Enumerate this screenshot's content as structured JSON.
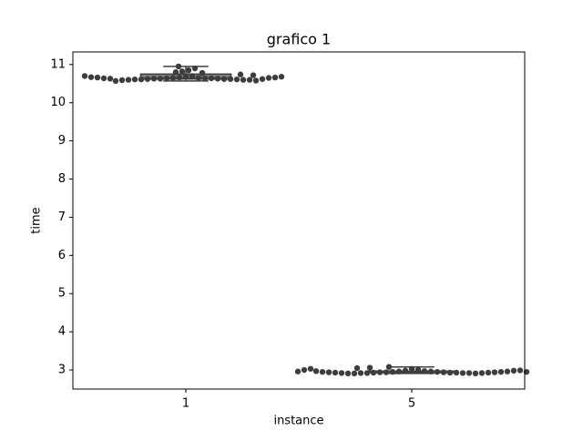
{
  "chart_data": {
    "type": "box",
    "title": "grafico 1",
    "x_label": "instance",
    "y_label": "time",
    "categories": [
      "1",
      "5"
    ],
    "box_color": "#808080",
    "line_color": "#3f3f3f",
    "point_color": "#3d3d3d",
    "boxes": [
      {
        "whislo": 10.57,
        "q1": 10.62,
        "med": 10.64,
        "q3": 10.75,
        "whishi": 10.95
      },
      {
        "whislo": 2.91,
        "q1": 2.93,
        "med": 2.94,
        "q3": 2.97,
        "whishi": 3.08
      }
    ],
    "points": [
      [
        10.7,
        10.7,
        10.66,
        10.65,
        10.65,
        10.64,
        10.64,
        10.64,
        10.63,
        10.63,
        10.63,
        10.62,
        10.62,
        10.62,
        10.61,
        10.61,
        10.61,
        10.6,
        10.6,
        10.6,
        10.59,
        10.58,
        10.57,
        10.62,
        10.63,
        10.64,
        10.65,
        10.66,
        10.66,
        10.67,
        10.68,
        10.7,
        10.72,
        10.74,
        10.78,
        10.82,
        10.85,
        10.9,
        10.95,
        10.8
      ],
      [
        3.03,
        3.0,
        2.98,
        2.97,
        2.96,
        2.96,
        2.95,
        2.95,
        2.94,
        2.94,
        2.94,
        2.93,
        2.93,
        2.93,
        2.92,
        2.92,
        2.92,
        2.92,
        2.91,
        2.91,
        2.91,
        2.92,
        2.92,
        2.93,
        2.93,
        2.94,
        2.94,
        2.95,
        2.95,
        2.96,
        2.97,
        2.98,
        3.03,
        3.06,
        3.08,
        3.05,
        3.0,
        2.99,
        2.96,
        2.95
      ]
    ],
    "ylim": [
      2.5,
      11.33
    ],
    "yticks": [
      3,
      4,
      5,
      6,
      7,
      8,
      9,
      10,
      11
    ]
  }
}
